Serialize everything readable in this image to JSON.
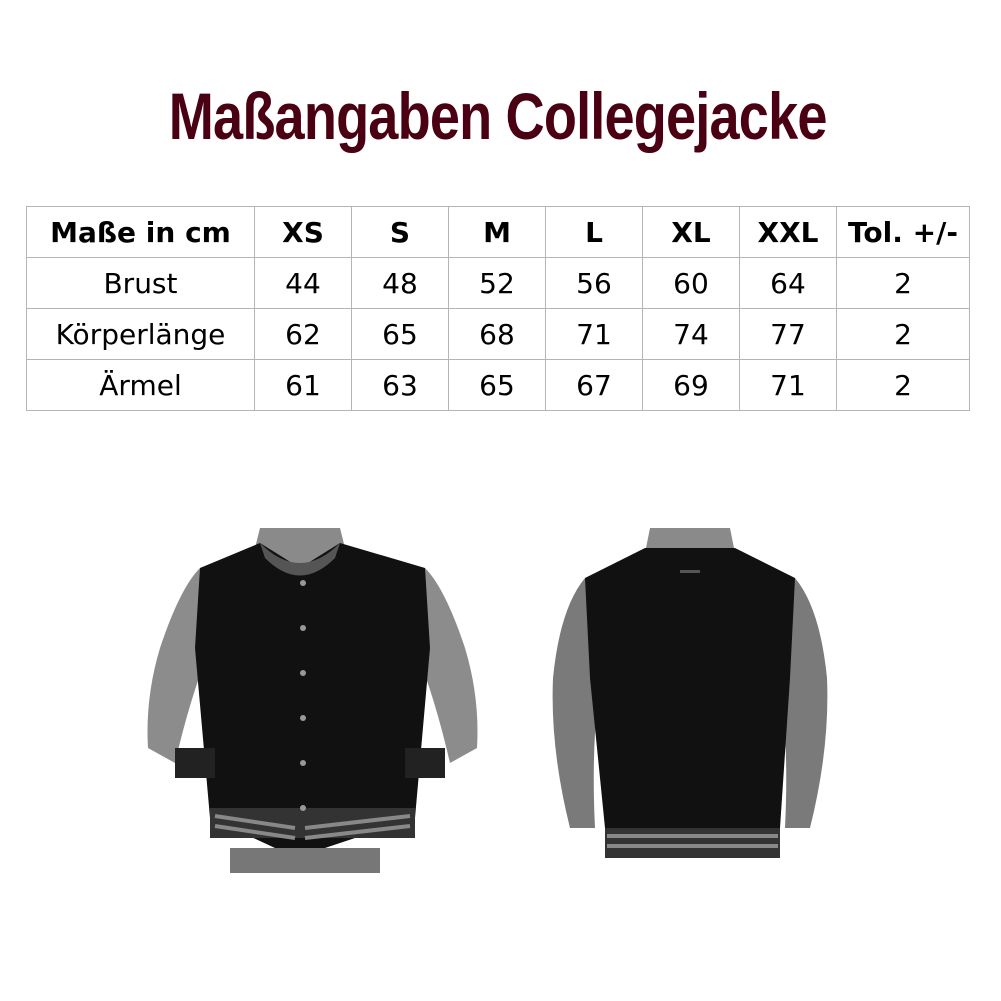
{
  "title": "Maßangaben Collegejacke",
  "table": {
    "headers": [
      "Maße in cm",
      "XS",
      "S",
      "M",
      "L",
      "XL",
      "XXL",
      "Tol. +/-"
    ],
    "rows": [
      [
        "Brust",
        "44",
        "48",
        "52",
        "56",
        "60",
        "64",
        "2"
      ],
      [
        "Körperlänge",
        "62",
        "65",
        "68",
        "71",
        "74",
        "77",
        "2"
      ],
      [
        "Ärmel",
        "61",
        "63",
        "65",
        "67",
        "69",
        "71",
        "2"
      ]
    ]
  },
  "images": {
    "front": "jacket-front-photo",
    "back": "jacket-back-photo"
  }
}
